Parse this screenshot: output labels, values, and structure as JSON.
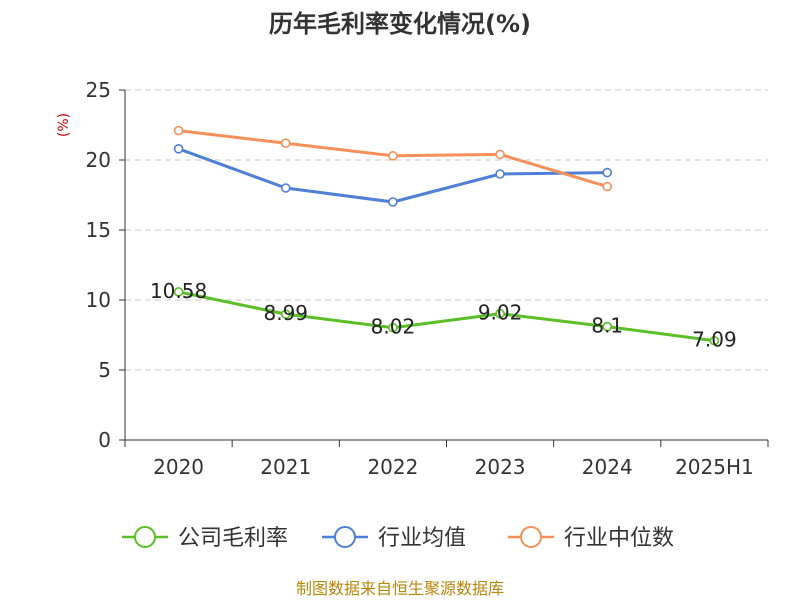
{
  "chart_data": {
    "type": "line",
    "title": "历年毛利率变化情况(%)",
    "ylabel": "(%)",
    "categories": [
      "2020",
      "2021",
      "2022",
      "2023",
      "2024",
      "2025H1"
    ],
    "ylim": [
      0,
      25
    ],
    "yticks": [
      "0",
      "5",
      "10",
      "15",
      "20",
      "25"
    ],
    "grid": true,
    "legend_position": "bottom",
    "series": [
      {
        "name": "公司毛利率",
        "color": "#5bbf25",
        "values": [
          10.58,
          8.99,
          8.02,
          9.02,
          8.1,
          7.09
        ],
        "labels": [
          "10.58",
          "8.99",
          "8.02",
          "9.02",
          "8.1",
          "7.09"
        ]
      },
      {
        "name": "行业均值",
        "color": "#4f7fd6",
        "values": [
          20.8,
          18.0,
          17.0,
          19.0,
          19.1,
          null
        ]
      },
      {
        "name": "行业中位数",
        "color": "#f5905a",
        "values": [
          22.1,
          21.2,
          20.3,
          20.4,
          18.1,
          null
        ]
      }
    ],
    "source": "制图数据来自恒生聚源数据库"
  }
}
